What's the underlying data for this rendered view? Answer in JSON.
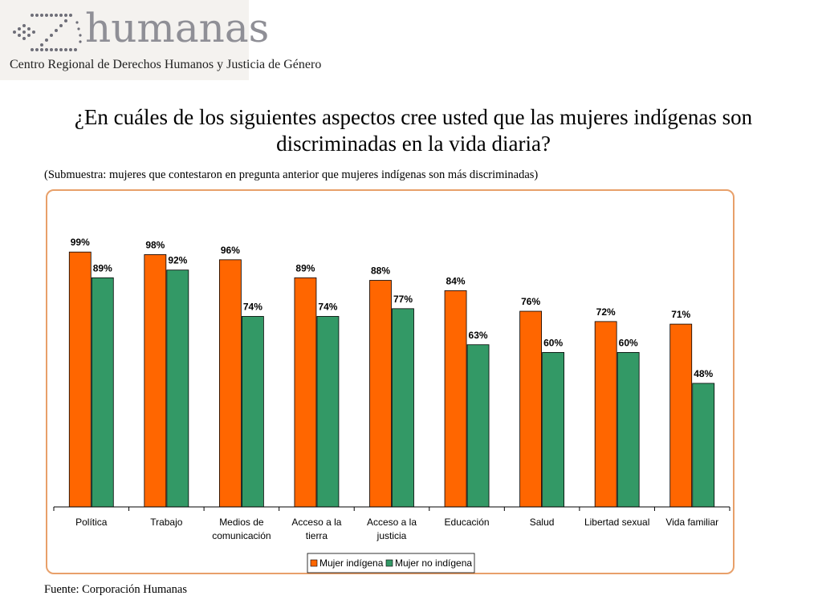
{
  "logo": {
    "name": "humanas",
    "subtitle": "Centro Regional de Derechos Humanos y Justicia de Género"
  },
  "title": "¿En cuáles de los siguientes aspectos cree usted que las mujeres indígenas son discriminadas en la vida diaria?",
  "subtitle": "(Submuestra: mujeres que contestaron en pregunta anterior que mujeres indígenas son más discriminadas)",
  "source": "Fuente: Corporación Humanas",
  "colors": {
    "series1": "#ff6600",
    "series2": "#339966",
    "frame": "#e8a06a"
  },
  "chart_data": {
    "type": "bar",
    "title": "",
    "categories": [
      [
        "Política"
      ],
      [
        "Trabajo"
      ],
      [
        "Medios de",
        "comunicación"
      ],
      [
        "Acceso a la",
        "tierra"
      ],
      [
        "Acceso a la",
        "justicia"
      ],
      [
        "Educación"
      ],
      [
        "Salud"
      ],
      [
        "Libertad sexual"
      ],
      [
        "Vida familiar"
      ]
    ],
    "series": [
      {
        "name": "Mujer indígena",
        "values": [
          99,
          98,
          96,
          89,
          88,
          84,
          76,
          72,
          71
        ],
        "labels": [
          "99%",
          "98%",
          "96%",
          "89%",
          "88%",
          "84%",
          "76%",
          "72%",
          "71%"
        ]
      },
      {
        "name": "Mujer no indígena",
        "values": [
          89,
          92,
          74,
          74,
          77,
          63,
          60,
          60,
          48
        ],
        "labels": [
          "89%",
          "92%",
          "74%",
          "74%",
          "77%",
          "63%",
          "60%",
          "60%",
          "48%"
        ]
      }
    ],
    "ylim": [
      0,
      100
    ],
    "xlabel": "",
    "ylabel": "",
    "grid": false,
    "legend": "bottom-center"
  }
}
